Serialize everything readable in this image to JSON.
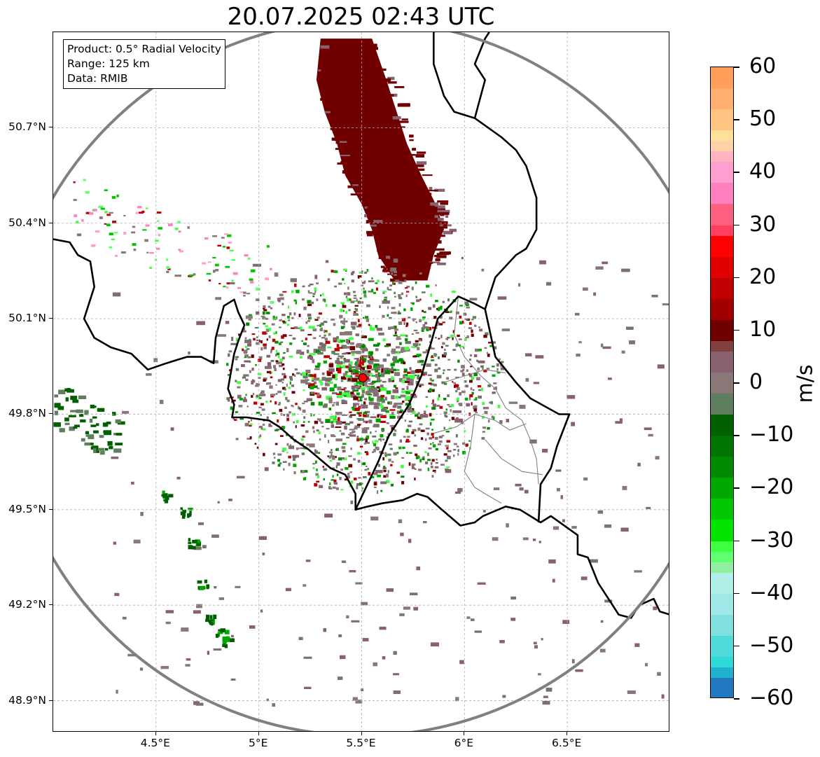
{
  "title": "20.07.2025 02:43 UTC",
  "info_box": {
    "product": "Product: 0.5° Radial Velocity",
    "range": "Range: 125 km",
    "data": "Data: RMIB"
  },
  "map": {
    "lon_min": 4.0,
    "lon_max": 7.0,
    "lat_min": 48.8,
    "lat_max": 51.0,
    "radar_site": {
      "lon": 5.505,
      "lat": 49.914
    },
    "range_km": 125,
    "range_ring_color": "#808080",
    "site_marker_color": "#ff0000",
    "grid_color": "#b0b0b0",
    "border_color": "#000000",
    "lat_ticks": [
      {
        "value": 50.7,
        "label": "50.7°N"
      },
      {
        "value": 50.4,
        "label": "50.4°N"
      },
      {
        "value": 50.1,
        "label": "50.1°N"
      },
      {
        "value": 49.8,
        "label": "49.8°N"
      },
      {
        "value": 49.5,
        "label": "49.5°N"
      },
      {
        "value": 49.2,
        "label": "49.2°N"
      },
      {
        "value": 48.9,
        "label": "48.9°N"
      }
    ],
    "lon_ticks": [
      {
        "value": 4.5,
        "label": "4.5°E"
      },
      {
        "value": 5.0,
        "label": "5°E"
      },
      {
        "value": 5.5,
        "label": "5.5°E"
      },
      {
        "value": 6.0,
        "label": "6°E"
      },
      {
        "value": 6.5,
        "label": "6.5°E"
      }
    ],
    "borders": [
      [
        [
          4.0,
          50.35
        ],
        [
          4.08,
          50.34
        ],
        [
          4.12,
          50.3
        ],
        [
          4.18,
          50.28
        ],
        [
          4.2,
          50.2
        ],
        [
          4.15,
          50.1
        ],
        [
          4.2,
          50.04
        ],
        [
          4.28,
          50.01
        ],
        [
          4.38,
          49.99
        ],
        [
          4.46,
          49.94
        ],
        [
          4.55,
          49.96
        ],
        [
          4.65,
          49.98
        ],
        [
          4.72,
          49.98
        ],
        [
          4.78,
          49.96
        ],
        [
          4.79,
          50.04
        ],
        [
          4.83,
          50.14
        ],
        [
          4.88,
          50.16
        ],
        [
          4.9,
          50.12
        ],
        [
          4.93,
          50.08
        ],
        [
          4.9,
          50.03
        ],
        [
          4.88,
          49.99
        ],
        [
          4.85,
          49.88
        ],
        [
          4.88,
          49.83
        ],
        [
          4.87,
          49.79
        ],
        [
          4.94,
          49.79
        ],
        [
          5.05,
          49.78
        ],
        [
          5.1,
          49.76
        ],
        [
          5.17,
          49.72
        ],
        [
          5.24,
          49.69
        ],
        [
          5.35,
          49.63
        ],
        [
          5.42,
          49.61
        ],
        [
          5.47,
          49.55
        ],
        [
          5.47,
          49.5
        ],
        [
          5.53,
          49.51
        ],
        [
          5.6,
          49.52
        ],
        [
          5.7,
          49.53
        ],
        [
          5.77,
          49.55
        ],
        [
          5.82,
          49.54
        ],
        [
          5.89,
          49.5
        ],
        [
          5.98,
          49.45
        ],
        [
          6.05,
          49.46
        ],
        [
          6.09,
          49.48
        ],
        [
          6.2,
          49.51
        ],
        [
          6.27,
          49.5
        ],
        [
          6.37,
          49.46
        ],
        [
          6.42,
          49.48
        ],
        [
          6.55,
          49.42
        ],
        [
          6.55,
          49.36
        ],
        [
          6.6,
          49.35
        ],
        [
          6.65,
          49.27
        ],
        [
          6.7,
          49.22
        ],
        [
          6.75,
          49.17
        ],
        [
          6.81,
          49.16
        ],
        [
          6.85,
          49.2
        ],
        [
          6.92,
          49.22
        ],
        [
          6.95,
          49.18
        ],
        [
          7.0,
          49.17
        ]
      ],
      [
        [
          5.47,
          49.5
        ],
        [
          5.58,
          49.65
        ],
        [
          5.63,
          49.73
        ],
        [
          5.73,
          49.83
        ],
        [
          5.79,
          49.92
        ],
        [
          5.84,
          50.03
        ],
        [
          5.87,
          50.1
        ],
        [
          5.97,
          50.17
        ],
        [
          6.04,
          50.15
        ],
        [
          6.1,
          50.13
        ],
        [
          6.12,
          50.07
        ],
        [
          6.15,
          49.98
        ],
        [
          6.25,
          49.9
        ],
        [
          6.32,
          49.85
        ],
        [
          6.46,
          49.8
        ],
        [
          6.51,
          49.8
        ],
        [
          6.45,
          49.7
        ],
        [
          6.42,
          49.63
        ],
        [
          6.37,
          49.58
        ],
        [
          6.36,
          49.46
        ]
      ],
      [
        [
          6.1,
          50.13
        ],
        [
          6.15,
          50.23
        ],
        [
          6.25,
          50.3
        ],
        [
          6.3,
          50.32
        ],
        [
          6.35,
          50.38
        ],
        [
          6.35,
          50.48
        ],
        [
          6.3,
          50.58
        ],
        [
          6.25,
          50.63
        ],
        [
          6.18,
          50.67
        ],
        [
          6.05,
          50.73
        ],
        [
          5.95,
          50.75
        ],
        [
          5.9,
          50.8
        ],
        [
          5.85,
          50.9
        ],
        [
          5.85,
          51.0
        ]
      ],
      [
        [
          6.05,
          50.73
        ],
        [
          6.1,
          50.85
        ],
        [
          6.05,
          50.9
        ],
        [
          6.1,
          50.98
        ],
        [
          6.12,
          51.0
        ]
      ]
    ],
    "admin_borders": [
      [
        [
          5.97,
          50.17
        ],
        [
          5.95,
          50.05
        ],
        [
          6.0,
          49.98
        ],
        [
          6.08,
          49.92
        ],
        [
          6.15,
          49.88
        ],
        [
          6.2,
          49.82
        ],
        [
          6.28,
          49.78
        ],
        [
          6.32,
          49.72
        ],
        [
          6.35,
          49.66
        ],
        [
          6.36,
          49.58
        ]
      ],
      [
        [
          5.85,
          49.74
        ],
        [
          5.96,
          49.76
        ],
        [
          6.05,
          49.8
        ],
        [
          6.15,
          49.78
        ],
        [
          6.22,
          49.75
        ],
        [
          6.3,
          49.77
        ]
      ],
      [
        [
          6.05,
          49.8
        ],
        [
          6.03,
          49.7
        ],
        [
          6.0,
          49.62
        ],
        [
          6.05,
          49.57
        ],
        [
          6.1,
          49.55
        ],
        [
          6.18,
          49.52
        ]
      ],
      [
        [
          5.9,
          49.9
        ],
        [
          6.0,
          49.92
        ],
        [
          6.1,
          49.94
        ],
        [
          6.2,
          49.93
        ]
      ],
      [
        [
          6.1,
          49.72
        ],
        [
          6.18,
          49.66
        ],
        [
          6.28,
          49.62
        ],
        [
          6.38,
          49.61
        ]
      ]
    ],
    "precip": {
      "main_band": {
        "lon_left": [
          5.3,
          5.28,
          5.32,
          5.38,
          5.42,
          5.5,
          5.55,
          5.58,
          5.66
        ],
        "lon_right": [
          5.55,
          5.62,
          5.67,
          5.72,
          5.79,
          5.86,
          5.9,
          5.85,
          5.82
        ],
        "lats": [
          50.98,
          50.85,
          50.75,
          50.65,
          50.55,
          50.46,
          50.38,
          50.3,
          50.22
        ]
      }
    }
  },
  "colorbar": {
    "label": "m/s",
    "vmin": -60,
    "vmax": 60,
    "ticks": [
      {
        "value": 60,
        "label": "60"
      },
      {
        "value": 50,
        "label": "50"
      },
      {
        "value": 40,
        "label": "40"
      },
      {
        "value": 30,
        "label": "30"
      },
      {
        "value": 20,
        "label": "20"
      },
      {
        "value": 10,
        "label": "10"
      },
      {
        "value": 0,
        "label": "0"
      },
      {
        "value": -10,
        "label": "−10"
      },
      {
        "value": -20,
        "label": "−20"
      },
      {
        "value": -30,
        "label": "−30"
      },
      {
        "value": -40,
        "label": "−40"
      },
      {
        "value": -50,
        "label": "−50"
      },
      {
        "value": -60,
        "label": "−60"
      }
    ],
    "stops": [
      {
        "from": 56,
        "to": 60,
        "color": "#ff9f5a"
      },
      {
        "from": 52,
        "to": 56,
        "color": "#ffb070"
      },
      {
        "from": 48,
        "to": 52,
        "color": "#ffc382"
      },
      {
        "from": 46,
        "to": 48,
        "color": "#ffe09a"
      },
      {
        "from": 44,
        "to": 46,
        "color": "#ffd2a8"
      },
      {
        "from": 42,
        "to": 44,
        "color": "#ffb4c0"
      },
      {
        "from": 38,
        "to": 42,
        "color": "#ff9fd0"
      },
      {
        "from": 34,
        "to": 38,
        "color": "#ff80c0"
      },
      {
        "from": 30,
        "to": 34,
        "color": "#ff6080"
      },
      {
        "from": 28,
        "to": 30,
        "color": "#ff4060"
      },
      {
        "from": 24,
        "to": 28,
        "color": "#ff0000"
      },
      {
        "from": 20,
        "to": 24,
        "color": "#e00000"
      },
      {
        "from": 16,
        "to": 20,
        "color": "#c00000"
      },
      {
        "from": 12,
        "to": 16,
        "color": "#a00000"
      },
      {
        "from": 8,
        "to": 12,
        "color": "#700000"
      },
      {
        "from": 6,
        "to": 8,
        "color": "#804040"
      },
      {
        "from": 2,
        "to": 6,
        "color": "#886070"
      },
      {
        "from": -2,
        "to": 2,
        "color": "#8a7878"
      },
      {
        "from": -6,
        "to": -2,
        "color": "#5e7e5e"
      },
      {
        "from": -10,
        "to": -6,
        "color": "#006000"
      },
      {
        "from": -14,
        "to": -10,
        "color": "#007400"
      },
      {
        "from": -18,
        "to": -14,
        "color": "#008a00"
      },
      {
        "from": -22,
        "to": -18,
        "color": "#00a800"
      },
      {
        "from": -26,
        "to": -22,
        "color": "#00c800"
      },
      {
        "from": -30,
        "to": -26,
        "color": "#00e400"
      },
      {
        "from": -32,
        "to": -30,
        "color": "#40ff40"
      },
      {
        "from": -34,
        "to": -32,
        "color": "#60ff70"
      },
      {
        "from": -36,
        "to": -34,
        "color": "#90f0a0"
      },
      {
        "from": -40,
        "to": -36,
        "color": "#b0f0e8"
      },
      {
        "from": -44,
        "to": -40,
        "color": "#a0e8e8"
      },
      {
        "from": -48,
        "to": -44,
        "color": "#80e0e0"
      },
      {
        "from": -52,
        "to": -48,
        "color": "#50dada"
      },
      {
        "from": -54,
        "to": -52,
        "color": "#30d8d8"
      },
      {
        "from": -56,
        "to": -54,
        "color": "#20b0d0"
      },
      {
        "from": -60,
        "to": -56,
        "color": "#1f78c0"
      }
    ]
  }
}
